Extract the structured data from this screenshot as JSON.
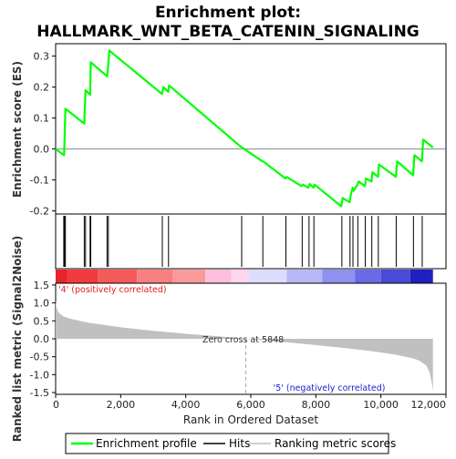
{
  "chart_data": {
    "type": "line",
    "title": "Enrichment plot:",
    "subtitle": "HALLMARK_WNT_BETA_CATENIN_SIGNALING",
    "top_panel": {
      "ylabel": "Enrichment score (ES)",
      "ylim": [
        -0.21,
        0.34
      ],
      "yticks": [
        -0.2,
        -0.1,
        0.0,
        0.1,
        0.2,
        0.3
      ],
      "ytick_labels": [
        "-0.2",
        "-0.1",
        "0.0",
        "0.1",
        "0.2",
        "0.3"
      ],
      "series": [
        {
          "name": "Enrichment profile",
          "color": "#00ff00",
          "x": [
            0,
            260,
            280,
            300,
            880,
            900,
            920,
            1060,
            1080,
            1580,
            1620,
            1650,
            3270,
            3310,
            3460,
            3490,
            5660,
            6360,
            6380,
            7060,
            7100,
            7560,
            7600,
            7770,
            7810,
            7930,
            7960,
            8780,
            8820,
            9040,
            9070,
            9130,
            9160,
            9280,
            9310,
            9510,
            9540,
            9710,
            9740,
            9910,
            9940,
            10460,
            10500,
            10990,
            11030,
            11260,
            11300,
            11600
          ],
          "y": [
            0.0,
            -0.02,
            0.055,
            0.13,
            0.082,
            0.14,
            0.19,
            0.175,
            0.28,
            0.235,
            0.275,
            0.318,
            0.178,
            0.2,
            0.185,
            0.205,
            0.01,
            -0.04,
            -0.04,
            -0.095,
            -0.09,
            -0.12,
            -0.115,
            -0.125,
            -0.113,
            -0.125,
            -0.115,
            -0.185,
            -0.158,
            -0.172,
            -0.15,
            -0.125,
            -0.135,
            -0.115,
            -0.105,
            -0.12,
            -0.095,
            -0.105,
            -0.075,
            -0.09,
            -0.05,
            -0.09,
            -0.04,
            -0.085,
            -0.02,
            -0.04,
            0.03,
            0.005
          ]
        }
      ]
    },
    "hits": [
      250,
      275,
      300,
      880,
      920,
      1060,
      1080,
      1580,
      1620,
      3280,
      3470,
      5720,
      6370,
      7080,
      7580,
      7790,
      7940,
      8800,
      9050,
      9140,
      9290,
      9520,
      9720,
      9920,
      10470,
      11000,
      11270
    ],
    "bottom_panel": {
      "ylabel": "Ranked list metric (Signal2Noise)",
      "ylim": [
        -1.55,
        1.55
      ],
      "yticks": [
        -1.5,
        -1.0,
        -0.5,
        0.0,
        0.5,
        1.0,
        1.5
      ],
      "ytick_labels": [
        "-1.5",
        "-1.0",
        "-0.5",
        "0.0",
        "0.5",
        "1.0",
        "1.5"
      ],
      "metric_x": [
        0,
        30,
        100,
        250,
        500,
        1000,
        2000,
        3000,
        4000,
        5000,
        5848,
        6500,
        7500,
        8500,
        9500,
        10000,
        10500,
        11000,
        11200,
        11400,
        11500,
        11560,
        11600
      ],
      "metric_y": [
        1.05,
        0.85,
        0.72,
        0.62,
        0.55,
        0.45,
        0.32,
        0.22,
        0.14,
        0.07,
        0.0,
        -0.05,
        -0.13,
        -0.22,
        -0.32,
        -0.38,
        -0.45,
        -0.55,
        -0.62,
        -0.75,
        -0.95,
        -1.2,
        -1.45
      ],
      "zero_cross_label": "Zero cross at 5848",
      "zero_cross_x": 5848,
      "pos_label": "'4' (positively correlated)",
      "neg_label": "'5' (negatively correlated)"
    },
    "xlabel": "Rank in Ordered Dataset",
    "xlim": [
      0,
      12000
    ],
    "xticks": [
      0,
      2000,
      4000,
      6000,
      8000,
      10000,
      12000
    ],
    "xtick_labels": [
      "0",
      "2,000",
      "4,000",
      "6,000",
      "8,000",
      "10,000",
      "12,000"
    ],
    "colorbar": [
      {
        "from": 0,
        "to": 350,
        "color": "#e8242c"
      },
      {
        "from": 350,
        "to": 1300,
        "color": "#f03c3c"
      },
      {
        "from": 1300,
        "to": 2500,
        "color": "#f55a5a"
      },
      {
        "from": 2500,
        "to": 3600,
        "color": "#f88080"
      },
      {
        "from": 3600,
        "to": 4600,
        "color": "#fb9a9a"
      },
      {
        "from": 4600,
        "to": 5400,
        "color": "#fcc0dc"
      },
      {
        "from": 5400,
        "to": 5950,
        "color": "#fdd6ee"
      },
      {
        "from": 5950,
        "to": 7100,
        "color": "#dcdcfc"
      },
      {
        "from": 7100,
        "to": 8200,
        "color": "#b8b8f8"
      },
      {
        "from": 8200,
        "to": 9200,
        "color": "#9090f0"
      },
      {
        "from": 9200,
        "to": 10000,
        "color": "#6a6ae6"
      },
      {
        "from": 10000,
        "to": 10900,
        "color": "#4a4ad8"
      },
      {
        "from": 10900,
        "to": 11600,
        "color": "#2020c0"
      }
    ],
    "legend": {
      "placement": "bottom",
      "items": [
        {
          "label": "Enrichment profile",
          "color": "#00ff00"
        },
        {
          "label": "Hits",
          "color": "#000000"
        },
        {
          "label": "Ranking metric scores",
          "color": "#c0c0c0"
        }
      ]
    },
    "colors": {
      "profile": "#00ff00",
      "metric_fill": "#c0c0c0",
      "pos_text": "#e02020",
      "neg_text": "#2020d0"
    }
  }
}
